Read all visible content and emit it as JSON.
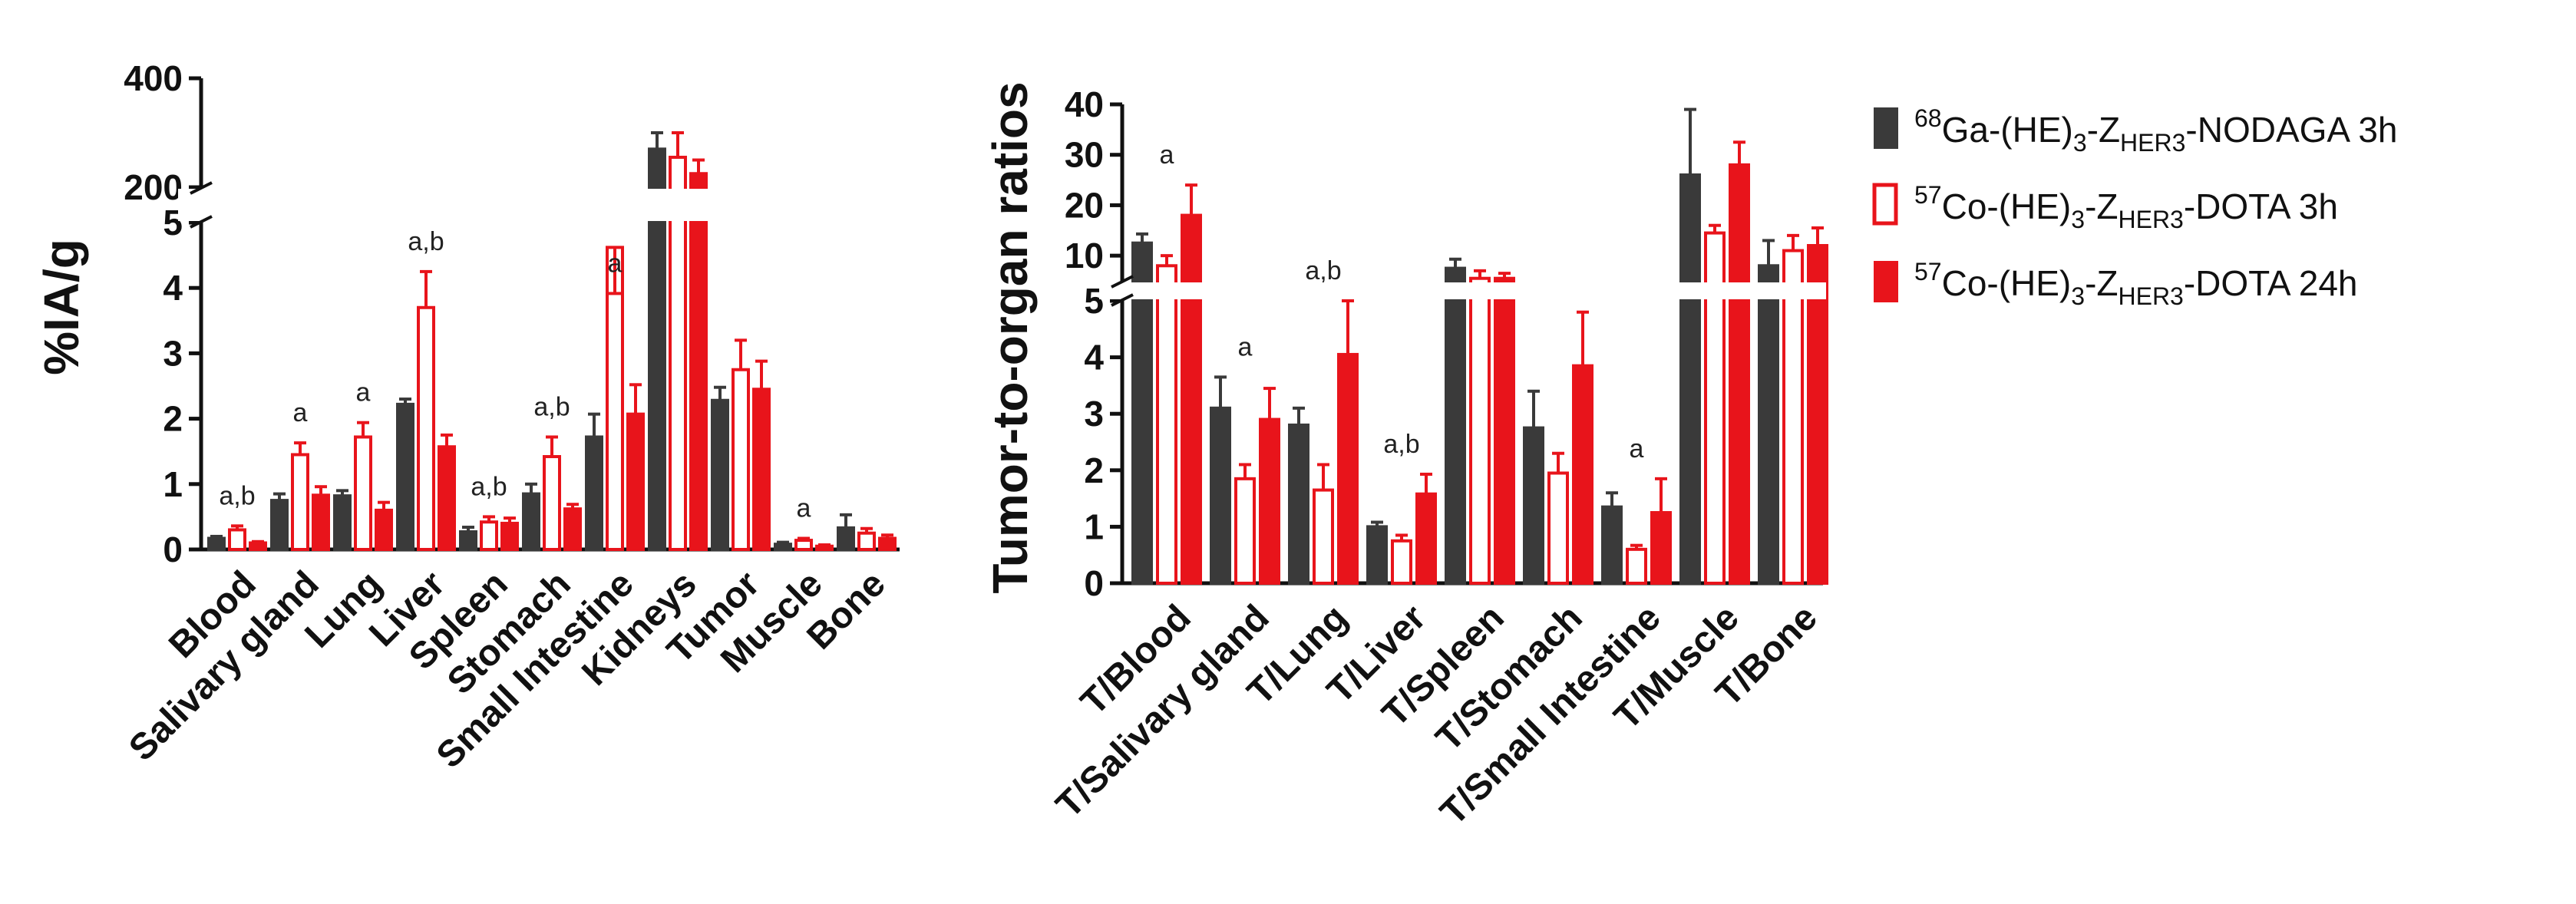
{
  "legend": [
    {
      "iso": "68",
      "pre": "Ga-(HE)",
      "sub1": "3",
      "mid": "-Z",
      "sub2": "HER3",
      "post": "-NODAGA 3h",
      "style": "filled",
      "color": "#3a3a3a"
    },
    {
      "iso": "57",
      "pre": "Co-(HE)",
      "sub1": "3",
      "mid": "-Z",
      "sub2": "HER3",
      "post": "-DOTA 3h",
      "style": "open",
      "color": "#e8141b"
    },
    {
      "iso": "57",
      "pre": "Co-(HE)",
      "sub1": "3",
      "mid": "-Z",
      "sub2": "HER3",
      "post": "-DOTA 24h",
      "style": "filled",
      "color": "#e8141b"
    }
  ],
  "chart_data": [
    {
      "type": "bar",
      "ylabel": "%IA/g",
      "ylim_lower": [
        0,
        5
      ],
      "ylim_upper": [
        200,
        400
      ],
      "yticks_lower": [
        "0",
        "1",
        "2",
        "3",
        "4",
        "5"
      ],
      "yticks_upper": [
        "200",
        "400"
      ],
      "categories": [
        "Blood",
        "Salivary gland",
        "Lung",
        "Liver",
        "Spleen",
        "Stomach",
        "Small Intestine",
        "Kidneys",
        "Tumor",
        "Muscle",
        "Bone"
      ],
      "series": [
        {
          "name": "68Ga-(HE)3-ZHER3-NODAGA 3h",
          "values": [
            0.17,
            0.75,
            0.82,
            2.22,
            0.27,
            0.85,
            1.72,
            270,
            2.28,
            0.08,
            0.33
          ],
          "errors": [
            0.03,
            0.1,
            0.08,
            0.08,
            0.07,
            0.15,
            0.35,
            30,
            0.2,
            0.03,
            0.2
          ]
        },
        {
          "name": "57Co-(HE)3-ZHER3-DOTA 3h",
          "values": [
            0.3,
            1.45,
            1.72,
            3.7,
            0.42,
            1.42,
            4.62,
            255,
            2.75,
            0.14,
            0.25
          ],
          "errors": [
            0.06,
            0.18,
            0.22,
            0.55,
            0.08,
            0.3,
            0.4,
            45,
            0.45,
            0.03,
            0.07
          ]
        },
        {
          "name": "57Co-(HE)3-ZHER3-DOTA 24h",
          "values": [
            0.1,
            0.83,
            0.6,
            1.57,
            0.4,
            0.62,
            2.07,
            225,
            2.45,
            0.05,
            0.17
          ],
          "errors": [
            0.02,
            0.13,
            0.12,
            0.18,
            0.08,
            0.07,
            0.45,
            25,
            0.43,
            0.02,
            0.05
          ]
        }
      ],
      "annotations": [
        "a,b",
        "a",
        "a",
        "a,b",
        "a,b",
        "a,b",
        "a",
        "",
        "",
        "a",
        ""
      ]
    },
    {
      "type": "bar",
      "ylabel": "Tumor-to-organ ratios",
      "ylim_lower": [
        0,
        5
      ],
      "ylim_upper": [
        5,
        40
      ],
      "yticks_lower": [
        "0",
        "1",
        "2",
        "3",
        "4",
        "5"
      ],
      "yticks_upper": [
        "10",
        "20",
        "30",
        "40"
      ],
      "categories": [
        "T/Blood",
        "T/Salivary gland",
        "T/Lung",
        "T/Liver",
        "T/Spleen",
        "T/Stomach",
        "T/Small Intestine",
        "T/Muscle",
        "T/Bone"
      ],
      "series": [
        {
          "name": "68Ga-(HE)3-ZHER3-NODAGA 3h",
          "values": [
            12.5,
            3.1,
            2.8,
            1.0,
            7.5,
            2.75,
            1.35,
            26,
            8
          ],
          "errors": [
            1.8,
            0.55,
            0.3,
            0.08,
            1.8,
            0.65,
            0.25,
            13,
            5
          ]
        },
        {
          "name": "57Co-(HE)3-ZHER3-DOTA 3h",
          "values": [
            8,
            1.85,
            1.65,
            0.75,
            5.5,
            1.95,
            0.6,
            14.5,
            11
          ],
          "errors": [
            2,
            0.25,
            0.45,
            0.1,
            1.5,
            0.35,
            0.07,
            1.5,
            3
          ]
        },
        {
          "name": "57Co-(HE)3-ZHER3-DOTA 24h",
          "values": [
            18,
            2.9,
            4.05,
            1.58,
            5.5,
            3.85,
            1.25,
            28,
            12
          ],
          "errors": [
            6,
            0.55,
            0.95,
            0.35,
            1,
            0.95,
            0.6,
            4.5,
            3.5
          ]
        }
      ],
      "annotations": [
        "a",
        "a",
        "a,b",
        "a,b",
        "",
        "",
        "a",
        "",
        ""
      ]
    }
  ]
}
